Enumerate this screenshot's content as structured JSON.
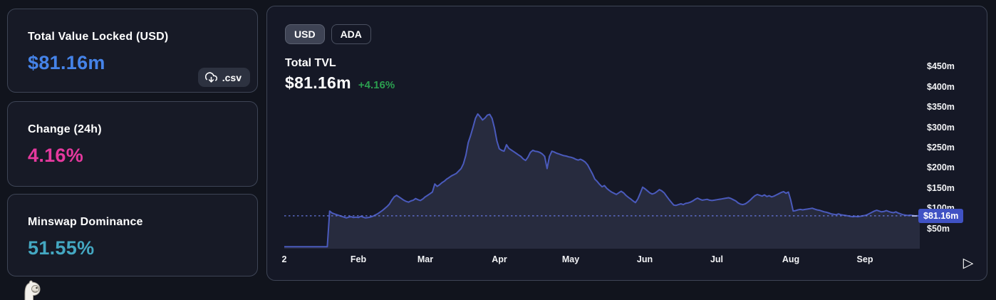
{
  "stats": {
    "tvl": {
      "label": "Total Value Locked (USD)",
      "value": "$81.16m",
      "value_color": "#4583e8",
      "csv_label": ".csv"
    },
    "change": {
      "label": "Change (24h)",
      "value": "4.16%",
      "value_color": "#e5399e"
    },
    "dominance": {
      "label": "Minswap Dominance",
      "value": "51.55%",
      "value_color": "#44a8c2"
    }
  },
  "chart_panel": {
    "currency_toggle": [
      {
        "label": "USD",
        "selected": true
      },
      {
        "label": "ADA",
        "selected": false
      }
    ],
    "title": "Total TVL",
    "value": "$81.16m",
    "change": "+4.16%",
    "change_color": "#2b9e4f",
    "play_glyph": "▷"
  },
  "icons": {
    "download_cloud": "download-cloud-icon",
    "play": "play-outline-icon",
    "mascot": "llama-mascot-icon"
  },
  "chart_data": {
    "type": "area",
    "title": "Total TVL (USD)",
    "x_unit": "days since 2022-01-01",
    "x_domain": [
      0,
      266
    ],
    "ylim": [
      0,
      472
    ],
    "grid": false,
    "legend_position": "none",
    "line_color": "#4a5abc",
    "fill_color": "rgba(139,144,190,0.16)",
    "dotted_line_color": "#6677e0",
    "marker_bg": "#4052c4",
    "current_value": 81.16,
    "current_value_label": "$81.16m",
    "x_ticks": [
      {
        "label": "2",
        "day": 0
      },
      {
        "label": "Feb",
        "day": 31
      },
      {
        "label": "Mar",
        "day": 59
      },
      {
        "label": "Apr",
        "day": 90
      },
      {
        "label": "May",
        "day": 120
      },
      {
        "label": "Jun",
        "day": 151
      },
      {
        "label": "Jul",
        "day": 181
      },
      {
        "label": "Aug",
        "day": 212
      },
      {
        "label": "Sep",
        "day": 243
      }
    ],
    "y_ticks": [
      {
        "label": "$450m",
        "value": 450
      },
      {
        "label": "$400m",
        "value": 400
      },
      {
        "label": "$350m",
        "value": 350
      },
      {
        "label": "$300m",
        "value": 300
      },
      {
        "label": "$250m",
        "value": 250
      },
      {
        "label": "$200m",
        "value": 200
      },
      {
        "label": "$150m",
        "value": 150
      },
      {
        "label": "$100m",
        "value": 100
      },
      {
        "label": "$50m",
        "value": 50
      }
    ],
    "series": [
      {
        "name": "Total TVL (USD, $m)",
        "points": [
          [
            0,
            5
          ],
          [
            4,
            5
          ],
          [
            8,
            5
          ],
          [
            12,
            5
          ],
          [
            16,
            5
          ],
          [
            18,
            5
          ],
          [
            19,
            93
          ],
          [
            20,
            88
          ],
          [
            21,
            86
          ],
          [
            22,
            84
          ],
          [
            23,
            82
          ],
          [
            24,
            80
          ],
          [
            25,
            78
          ],
          [
            26,
            76
          ],
          [
            27,
            78
          ],
          [
            28,
            79
          ],
          [
            29,
            77
          ],
          [
            30,
            78
          ],
          [
            31,
            77
          ],
          [
            32,
            80
          ],
          [
            33,
            78
          ],
          [
            34,
            76
          ],
          [
            35,
            77
          ],
          [
            36,
            78
          ],
          [
            37,
            80
          ],
          [
            38,
            83
          ],
          [
            39,
            86
          ],
          [
            40,
            90
          ],
          [
            41,
            94
          ],
          [
            42,
            99
          ],
          [
            43,
            104
          ],
          [
            44,
            110
          ],
          [
            45,
            120
          ],
          [
            46,
            128
          ],
          [
            47,
            132
          ],
          [
            48,
            128
          ],
          [
            49,
            124
          ],
          [
            50,
            120
          ],
          [
            51,
            117
          ],
          [
            52,
            115
          ],
          [
            53,
            118
          ],
          [
            54,
            120
          ],
          [
            55,
            124
          ],
          [
            56,
            121
          ],
          [
            57,
            119
          ],
          [
            58,
            123
          ],
          [
            59,
            128
          ],
          [
            60,
            132
          ],
          [
            61,
            136
          ],
          [
            62,
            140
          ],
          [
            63,
            160
          ],
          [
            64,
            154
          ],
          [
            65,
            158
          ],
          [
            66,
            163
          ],
          [
            67,
            167
          ],
          [
            68,
            172
          ],
          [
            69,
            176
          ],
          [
            70,
            180
          ],
          [
            71,
            183
          ],
          [
            72,
            186
          ],
          [
            73,
            192
          ],
          [
            74,
            198
          ],
          [
            75,
            210
          ],
          [
            76,
            231
          ],
          [
            77,
            262
          ],
          [
            78,
            280
          ],
          [
            79,
            300
          ],
          [
            80,
            322
          ],
          [
            81,
            333
          ],
          [
            82,
            326
          ],
          [
            83,
            318
          ],
          [
            84,
            323
          ],
          [
            85,
            330
          ],
          [
            86,
            332
          ],
          [
            87,
            322
          ],
          [
            88,
            298
          ],
          [
            89,
            266
          ],
          [
            90,
            247
          ],
          [
            91,
            243
          ],
          [
            92,
            241
          ],
          [
            93,
            257
          ],
          [
            94,
            248
          ],
          [
            95,
            244
          ],
          [
            96,
            240
          ],
          [
            97,
            236
          ],
          [
            98,
            232
          ],
          [
            99,
            228
          ],
          [
            100,
            222
          ],
          [
            101,
            218
          ],
          [
            102,
            226
          ],
          [
            103,
            238
          ],
          [
            104,
            243
          ],
          [
            105,
            241
          ],
          [
            106,
            240
          ],
          [
            107,
            238
          ],
          [
            108,
            234
          ],
          [
            109,
            228
          ],
          [
            110,
            198
          ],
          [
            111,
            228
          ],
          [
            112,
            241
          ],
          [
            113,
            239
          ],
          [
            114,
            236
          ],
          [
            115,
            234
          ],
          [
            116,
            232
          ],
          [
            117,
            230
          ],
          [
            118,
            229
          ],
          [
            119,
            227
          ],
          [
            120,
            226
          ],
          [
            121,
            224
          ],
          [
            122,
            221
          ],
          [
            123,
            219
          ],
          [
            124,
            221
          ],
          [
            125,
            218
          ],
          [
            126,
            214
          ],
          [
            127,
            207
          ],
          [
            128,
            196
          ],
          [
            129,
            185
          ],
          [
            130,
            172
          ],
          [
            131,
            166
          ],
          [
            132,
            159
          ],
          [
            133,
            153
          ],
          [
            134,
            156
          ],
          [
            135,
            149
          ],
          [
            136,
            144
          ],
          [
            137,
            140
          ],
          [
            138,
            137
          ],
          [
            139,
            134
          ],
          [
            140,
            138
          ],
          [
            141,
            142
          ],
          [
            142,
            138
          ],
          [
            143,
            132
          ],
          [
            144,
            127
          ],
          [
            145,
            123
          ],
          [
            146,
            118
          ],
          [
            147,
            114
          ],
          [
            148,
            123
          ],
          [
            149,
            137
          ],
          [
            150,
            152
          ],
          [
            151,
            148
          ],
          [
            152,
            143
          ],
          [
            153,
            138
          ],
          [
            154,
            135
          ],
          [
            155,
            137
          ],
          [
            156,
            141
          ],
          [
            157,
            146
          ],
          [
            158,
            143
          ],
          [
            159,
            138
          ],
          [
            160,
            130
          ],
          [
            161,
            122
          ],
          [
            162,
            115
          ],
          [
            163,
            108
          ],
          [
            164,
            107
          ],
          [
            165,
            109
          ],
          [
            166,
            111
          ],
          [
            167,
            109
          ],
          [
            168,
            112
          ],
          [
            169,
            113
          ],
          [
            170,
            115
          ],
          [
            171,
            118
          ],
          [
            172,
            122
          ],
          [
            173,
            125
          ],
          [
            174,
            122
          ],
          [
            175,
            120
          ],
          [
            176,
            121
          ],
          [
            177,
            122
          ],
          [
            178,
            120
          ],
          [
            179,
            119
          ],
          [
            180,
            120
          ],
          [
            181,
            121
          ],
          [
            182,
            122
          ],
          [
            183,
            123
          ],
          [
            184,
            124
          ],
          [
            185,
            125
          ],
          [
            186,
            126
          ],
          [
            187,
            124
          ],
          [
            188,
            121
          ],
          [
            189,
            118
          ],
          [
            190,
            113
          ],
          [
            191,
            110
          ],
          [
            192,
            109
          ],
          [
            193,
            111
          ],
          [
            194,
            115
          ],
          [
            195,
            120
          ],
          [
            196,
            126
          ],
          [
            197,
            131
          ],
          [
            198,
            134
          ],
          [
            199,
            132
          ],
          [
            200,
            130
          ],
          [
            201,
            133
          ],
          [
            202,
            129
          ],
          [
            203,
            131
          ],
          [
            204,
            128
          ],
          [
            205,
            130
          ],
          [
            206,
            133
          ],
          [
            207,
            136
          ],
          [
            208,
            139
          ],
          [
            209,
            141
          ],
          [
            210,
            137
          ],
          [
            211,
            140
          ],
          [
            212,
            120
          ],
          [
            213,
            93
          ],
          [
            214,
            94
          ],
          [
            215,
            96
          ],
          [
            216,
            97
          ],
          [
            217,
            96
          ],
          [
            218,
            97
          ],
          [
            219,
            98
          ],
          [
            220,
            99
          ],
          [
            221,
            100
          ],
          [
            222,
            98
          ],
          [
            223,
            96
          ],
          [
            224,
            95
          ],
          [
            225,
            93
          ],
          [
            226,
            91
          ],
          [
            227,
            90
          ],
          [
            228,
            88
          ],
          [
            229,
            86
          ],
          [
            230,
            85
          ],
          [
            231,
            84
          ],
          [
            232,
            86
          ],
          [
            233,
            84
          ],
          [
            234,
            83
          ],
          [
            235,
            82
          ],
          [
            236,
            81
          ],
          [
            237,
            80
          ],
          [
            238,
            79
          ],
          [
            239,
            80
          ],
          [
            240,
            79
          ],
          [
            241,
            80
          ],
          [
            242,
            81
          ],
          [
            243,
            82
          ],
          [
            244,
            84
          ],
          [
            245,
            87
          ],
          [
            246,
            90
          ],
          [
            247,
            93
          ],
          [
            248,
            95
          ],
          [
            249,
            93
          ],
          [
            250,
            91
          ],
          [
            251,
            92
          ],
          [
            252,
            94
          ],
          [
            253,
            92
          ],
          [
            254,
            90
          ],
          [
            255,
            89
          ],
          [
            256,
            91
          ],
          [
            257,
            88
          ],
          [
            258,
            86
          ],
          [
            259,
            84
          ],
          [
            260,
            83
          ],
          [
            261,
            82
          ],
          [
            262,
            83
          ],
          [
            263,
            82
          ],
          [
            264,
            81
          ],
          [
            265,
            81.5
          ],
          [
            266,
            81.16
          ]
        ]
      }
    ]
  }
}
